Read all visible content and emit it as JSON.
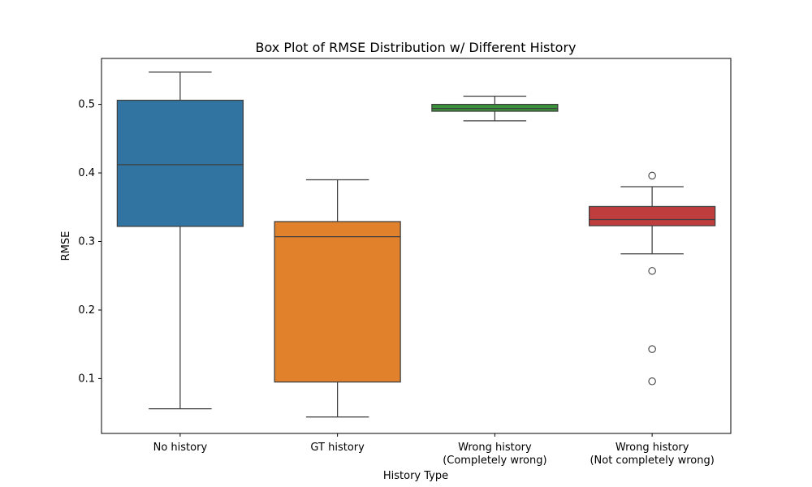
{
  "chart_data": {
    "type": "box",
    "title": "Box Plot of RMSE Distribution w/ Different History",
    "xlabel": "History Type",
    "ylabel": "RMSE",
    "ylim": [
      0.02,
      0.567
    ],
    "yticks": [
      0.1,
      0.2,
      0.3,
      0.4,
      0.5
    ],
    "ytick_labels": [
      "0.1",
      "0.2",
      "0.3",
      "0.4",
      "0.5"
    ],
    "grid": false,
    "legend": "none",
    "categories": [
      {
        "label_lines": [
          "No history"
        ],
        "color": "#3274a1",
        "whisker_low": 0.056,
        "q1": 0.322,
        "median": 0.412,
        "q3": 0.506,
        "whisker_high": 0.547,
        "outliers": []
      },
      {
        "label_lines": [
          "GT history"
        ],
        "color": "#e1812c",
        "whisker_low": 0.044,
        "q1": 0.095,
        "median": 0.307,
        "q3": 0.329,
        "whisker_high": 0.39,
        "outliers": []
      },
      {
        "label_lines": [
          "Wrong history",
          "(Completely wrong)"
        ],
        "color": "#3a923a",
        "whisker_low": 0.476,
        "q1": 0.49,
        "median": 0.494,
        "q3": 0.5,
        "whisker_high": 0.512,
        "outliers": []
      },
      {
        "label_lines": [
          "Wrong history",
          "(Not completely wrong)"
        ],
        "color": "#c03d3e",
        "whisker_low": 0.282,
        "q1": 0.323,
        "median": 0.332,
        "q3": 0.351,
        "whisker_high": 0.38,
        "outliers": [
          0.396,
          0.257,
          0.143,
          0.096
        ]
      }
    ]
  }
}
